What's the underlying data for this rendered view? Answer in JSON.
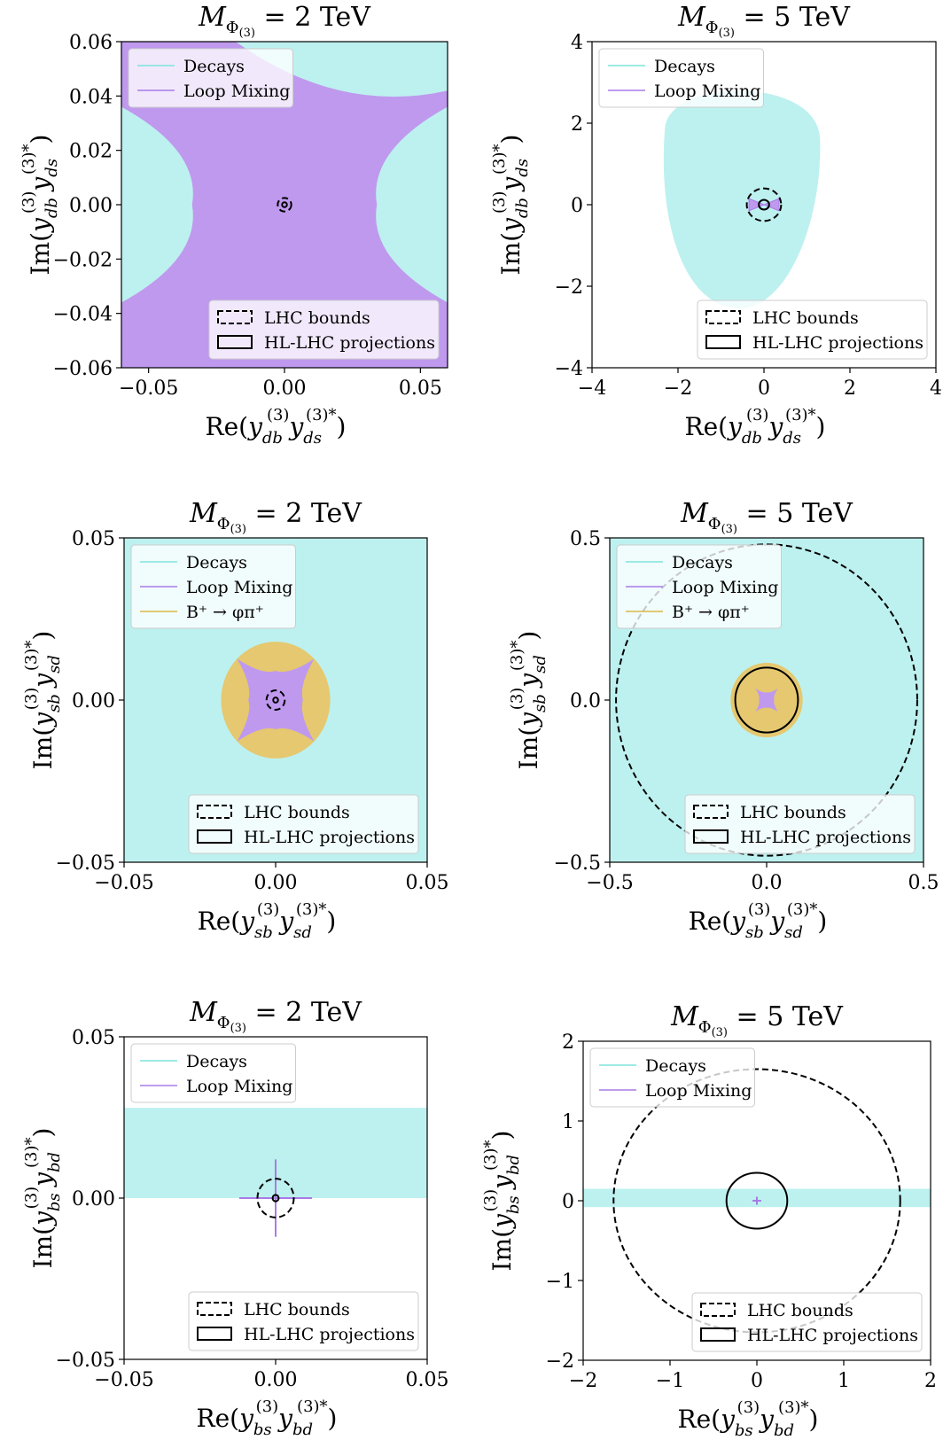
{
  "colors": {
    "decays": "#bdf1ef",
    "decays_line": "#7fe3dc",
    "loop": "#bf99ee",
    "loop_line": "#a97be6",
    "bphi": "#e5c86f",
    "bphi_line": "#d9b84a",
    "lhc": "#000000",
    "hl": "#000000"
  },
  "legend_text": {
    "decays": "Decays",
    "loop": "Loop Mixing",
    "bphi": "B⁺ → φπ⁺",
    "lhc": "LHC bounds",
    "hl": "HL-LHC projections"
  },
  "chart_data": [
    {
      "type": "area",
      "panel": "row1-left",
      "title": "M_Φ(3) = 2 TeV",
      "xlabel": "Re(y_db y_ds*)",
      "ylabel": "Im(y_db y_ds*)",
      "xlabel_sub": [
        "db",
        "ds"
      ],
      "xlim": [
        -0.06,
        0.06
      ],
      "ylim": [
        -0.06,
        0.06
      ],
      "xticks": [
        -0.05,
        0.0,
        0.05
      ],
      "xtick_labels": [
        "−0.05",
        "0.00",
        "0.05"
      ],
      "yticks": [
        -0.06,
        -0.04,
        -0.02,
        0.0,
        0.02,
        0.04,
        0.06
      ],
      "ytick_labels": [
        "−0.06",
        "−0.04",
        "−0.02",
        "0.00",
        "0.02",
        "0.04",
        "0.06"
      ],
      "regions": [
        {
          "series": "decays",
          "shape": "full"
        },
        {
          "series": "loop",
          "shape": "hourglass",
          "waist": 0.034,
          "corner_y": 0.036
        }
      ],
      "lhc_circle": {
        "center": [
          0,
          0
        ],
        "radius": 0.0025
      },
      "hl_circle": {
        "center": [
          0,
          0
        ],
        "radius": 0.0009
      },
      "legend_top": [
        "decays",
        "loop"
      ],
      "legend_bottom": [
        "lhc",
        "hl"
      ]
    },
    {
      "type": "area",
      "panel": "row1-right",
      "title": "M_Φ(3) = 5 TeV",
      "xlabel": "Re(y_db y_ds*)",
      "ylabel": "Im(y_db y_ds*)",
      "xlabel_sub": [
        "db",
        "ds"
      ],
      "xlim": [
        -4,
        4
      ],
      "ylim": [
        -4,
        4
      ],
      "xticks": [
        -4,
        -2,
        0,
        2,
        4
      ],
      "xtick_labels": [
        "−4",
        "−2",
        "0",
        "2",
        "4"
      ],
      "yticks": [
        -4,
        -2,
        0,
        2,
        4
      ],
      "ytick_labels": [
        "−4",
        "−2",
        "0",
        "2",
        "4"
      ],
      "regions": [
        {
          "series": "decays",
          "shape": "blob",
          "center": [
            -0.5,
            0.3
          ],
          "rx": 1.8,
          "ry": 2.7
        },
        {
          "series": "loop",
          "shape": "bowtie",
          "halfwidth": 0.35,
          "height": 0.15
        }
      ],
      "lhc_circle": {
        "center": [
          0,
          0
        ],
        "radius": 0.4
      },
      "hl_circle": {
        "center": [
          0,
          0
        ],
        "radius": 0.12
      },
      "legend_top": [
        "decays",
        "loop"
      ],
      "legend_bottom": [
        "lhc",
        "hl"
      ]
    },
    {
      "type": "area",
      "panel": "row2-left",
      "title": "M_Φ(3) = 2 TeV",
      "xlabel": "Re(y_sb y_sd*)",
      "ylabel": "Im(y_sb y_sd*)",
      "xlabel_sub": [
        "sb",
        "sd"
      ],
      "xlim": [
        -0.05,
        0.05
      ],
      "ylim": [
        -0.05,
        0.05
      ],
      "xticks": [
        -0.05,
        0.0,
        0.05
      ],
      "xtick_labels": [
        "−0.05",
        "0.00",
        "0.05"
      ],
      "yticks": [
        -0.05,
        0.0,
        0.05
      ],
      "ytick_labels": [
        "−0.05",
        "0.00",
        "0.05"
      ],
      "regions": [
        {
          "series": "decays",
          "shape": "full"
        },
        {
          "series": "bphi",
          "shape": "circle",
          "center": [
            0,
            0
          ],
          "radius": 0.018
        },
        {
          "series": "loop",
          "shape": "star",
          "center": [
            0,
            0
          ],
          "outer": 0.018,
          "inner": 0.009
        }
      ],
      "lhc_circle": {
        "center": [
          0,
          0
        ],
        "radius": 0.003
      },
      "hl_circle": {
        "center": [
          0,
          0
        ],
        "radius": 0.0008
      },
      "legend_top": [
        "decays",
        "loop",
        "bphi"
      ],
      "legend_bottom": [
        "lhc",
        "hl"
      ]
    },
    {
      "type": "area",
      "panel": "row2-right",
      "title": "M_Φ(3) = 5 TeV",
      "xlabel": "Re(y_sb y_sd*)",
      "ylabel": "Im(y_sb y_sd*)",
      "xlabel_sub": [
        "sb",
        "sd"
      ],
      "xlim": [
        -0.5,
        0.5
      ],
      "ylim": [
        -0.5,
        0.5
      ],
      "xticks": [
        -0.5,
        0.0,
        0.5
      ],
      "xtick_labels": [
        "−0.5",
        "0.0",
        "0.5"
      ],
      "yticks": [
        -0.5,
        0.0,
        0.5
      ],
      "ytick_labels": [
        "−0.5",
        "0.0",
        "0.5"
      ],
      "regions": [
        {
          "series": "decays",
          "shape": "full"
        },
        {
          "series": "bphi",
          "shape": "circle",
          "center": [
            0,
            0
          ],
          "radius": 0.115
        },
        {
          "series": "loop",
          "shape": "star",
          "center": [
            0,
            0
          ],
          "outer": 0.05,
          "inner": 0.024
        }
      ],
      "lhc_circle": {
        "center": [
          0,
          0
        ],
        "radius": 0.48
      },
      "hl_circle": {
        "center": [
          0,
          0
        ],
        "radius": 0.1
      },
      "legend_top": [
        "decays",
        "loop",
        "bphi"
      ],
      "legend_bottom": [
        "lhc",
        "hl"
      ]
    },
    {
      "type": "area",
      "panel": "row3-left",
      "title": "M_Φ(3) = 2 TeV",
      "xlabel": "Re(y_bs y_bd*)",
      "ylabel": "Im(y_bs y_bd*)",
      "xlabel_sub": [
        "bs",
        "bd"
      ],
      "xlim": [
        -0.05,
        0.05
      ],
      "ylim": [
        -0.05,
        0.05
      ],
      "xticks": [
        -0.05,
        0.0,
        0.05
      ],
      "xtick_labels": [
        "−0.05",
        "0.00",
        "0.05"
      ],
      "yticks": [
        -0.05,
        0.0,
        0.05
      ],
      "ytick_labels": [
        "−0.05",
        "0.00",
        "0.05"
      ],
      "regions": [
        {
          "series": "decays",
          "shape": "band",
          "y_range": [
            0.0,
            0.028
          ]
        },
        {
          "series": "loop",
          "shape": "cross",
          "halfx": 0.012,
          "halfy": 0.012
        }
      ],
      "lhc_circle": {
        "center": [
          0,
          0
        ],
        "radius": 0.006
      },
      "hl_circle": {
        "center": [
          0,
          0
        ],
        "radius": 0.001
      },
      "legend_top": [
        "decays",
        "loop"
      ],
      "legend_bottom": [
        "lhc",
        "hl"
      ]
    },
    {
      "type": "area",
      "panel": "row3-right",
      "title": "M_Φ(3) = 5 TeV",
      "xlabel": "Re(y_bs y_bd*)",
      "ylabel": "Im(y_bs y_bd*)",
      "xlabel_sub": [
        "bs",
        "bd"
      ],
      "xlim": [
        -2,
        2
      ],
      "ylim": [
        -2,
        2
      ],
      "xticks": [
        -2,
        -1,
        0,
        1,
        2
      ],
      "xtick_labels": [
        "−2",
        "−1",
        "0",
        "1",
        "2"
      ],
      "yticks": [
        -2,
        -1,
        0,
        1,
        2
      ],
      "ytick_labels": [
        "−2",
        "−1",
        "0",
        "1",
        "2"
      ],
      "regions": [
        {
          "series": "decays",
          "shape": "band",
          "y_range": [
            -0.08,
            0.15
          ]
        },
        {
          "series": "loop",
          "shape": "cross",
          "halfx": 0.05,
          "halfy": 0.05
        }
      ],
      "lhc_circle": {
        "center": [
          0,
          0
        ],
        "radius": 1.65
      },
      "hl_circle": {
        "center": [
          0,
          0
        ],
        "radius": 0.35
      },
      "legend_top": [
        "decays",
        "loop"
      ],
      "legend_bottom": [
        "lhc",
        "hl"
      ]
    }
  ]
}
